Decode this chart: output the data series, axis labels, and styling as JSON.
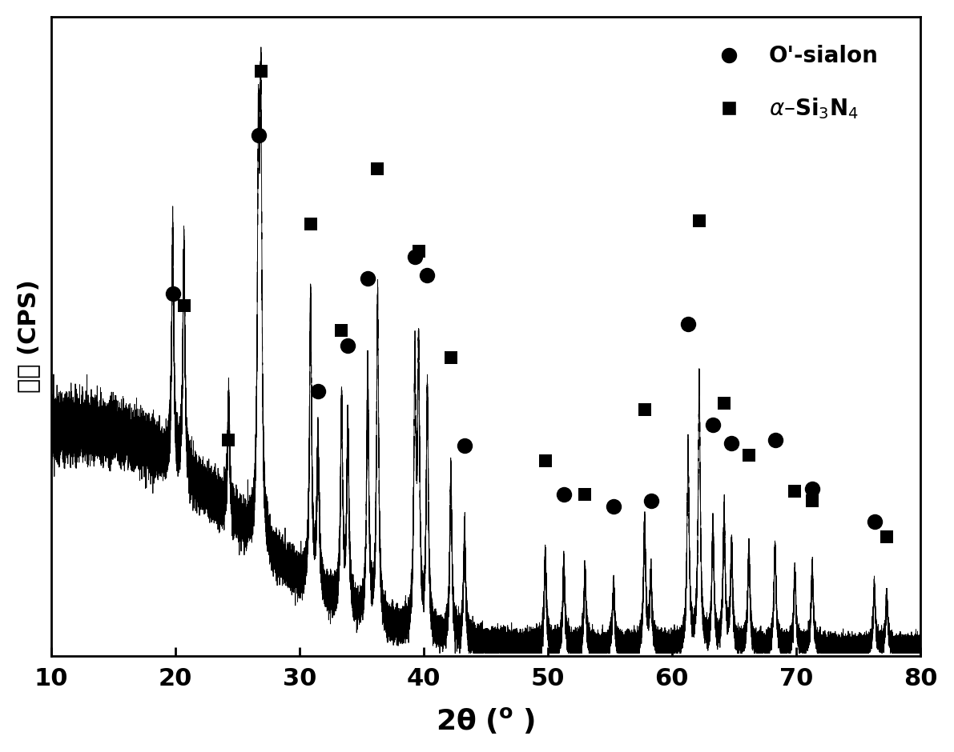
{
  "xlabel": "2θ (°)",
  "ylabel": "強度 (CPS)",
  "xlim": [
    10,
    80
  ],
  "ylim": [
    0,
    1.05
  ],
  "background_color": "#ffffff",
  "legend_circle": "O'-sialon",
  "xticks": [
    10,
    20,
    30,
    40,
    50,
    60,
    70,
    80
  ],
  "circle_markers": [
    [
      19.8,
      0.595
    ],
    [
      26.7,
      0.855
    ],
    [
      31.5,
      0.435
    ],
    [
      33.9,
      0.51
    ],
    [
      35.5,
      0.62
    ],
    [
      39.3,
      0.655
    ],
    [
      40.3,
      0.625
    ],
    [
      43.3,
      0.345
    ],
    [
      51.3,
      0.265
    ],
    [
      55.3,
      0.245
    ],
    [
      58.3,
      0.255
    ],
    [
      61.3,
      0.545
    ],
    [
      63.3,
      0.38
    ],
    [
      64.8,
      0.35
    ],
    [
      68.3,
      0.355
    ],
    [
      71.3,
      0.275
    ],
    [
      76.3,
      0.22
    ]
  ],
  "square_markers": [
    [
      20.7,
      0.575
    ],
    [
      24.3,
      0.355
    ],
    [
      26.9,
      0.96
    ],
    [
      30.9,
      0.71
    ],
    [
      33.4,
      0.535
    ],
    [
      36.3,
      0.8
    ],
    [
      39.6,
      0.665
    ],
    [
      42.2,
      0.49
    ],
    [
      49.8,
      0.32
    ],
    [
      53.0,
      0.265
    ],
    [
      57.8,
      0.405
    ],
    [
      62.2,
      0.715
    ],
    [
      64.2,
      0.415
    ],
    [
      66.2,
      0.33
    ],
    [
      69.9,
      0.27
    ],
    [
      71.3,
      0.255
    ],
    [
      77.3,
      0.195
    ]
  ],
  "all_peaks": [
    [
      19.8,
      0.52
    ],
    [
      20.7,
      0.5
    ],
    [
      24.3,
      0.25
    ],
    [
      26.7,
      0.82
    ],
    [
      26.9,
      0.92
    ],
    [
      30.9,
      0.65
    ],
    [
      31.5,
      0.35
    ],
    [
      33.4,
      0.45
    ],
    [
      33.9,
      0.42
    ],
    [
      35.5,
      0.56
    ],
    [
      36.3,
      0.73
    ],
    [
      39.3,
      0.58
    ],
    [
      39.6,
      0.6
    ],
    [
      40.3,
      0.54
    ],
    [
      42.2,
      0.38
    ],
    [
      43.3,
      0.24
    ],
    [
      49.8,
      0.2
    ],
    [
      51.3,
      0.18
    ],
    [
      53.0,
      0.16
    ],
    [
      55.3,
      0.14
    ],
    [
      57.8,
      0.28
    ],
    [
      58.3,
      0.16
    ],
    [
      61.3,
      0.44
    ],
    [
      62.2,
      0.6
    ],
    [
      63.3,
      0.27
    ],
    [
      64.2,
      0.3
    ],
    [
      64.8,
      0.22
    ],
    [
      66.2,
      0.22
    ],
    [
      68.3,
      0.22
    ],
    [
      69.9,
      0.16
    ],
    [
      71.3,
      0.18
    ],
    [
      76.3,
      0.13
    ],
    [
      77.3,
      0.11
    ]
  ]
}
